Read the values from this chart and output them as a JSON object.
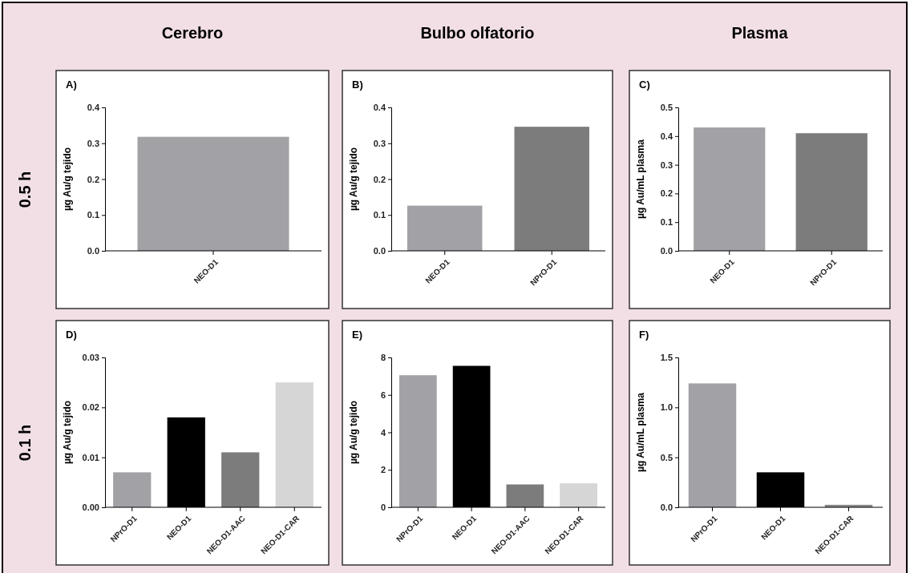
{
  "chart_data": [
    {
      "type": "bar",
      "title": "A)",
      "subtitle": "Cerebro",
      "annotations": [
        "0.5 h"
      ],
      "ylabel": "µg Au/g tejido",
      "categories": [
        "NEO-D1"
      ],
      "values": [
        0.318
      ],
      "colors": [
        "#a2a2a6"
      ],
      "ylim": [
        0,
        0.4
      ],
      "yticks": [
        {
          "value": 0,
          "label": "0.0"
        },
        {
          "value": 0.1,
          "label": "0.1"
        },
        {
          "value": 0.2,
          "label": "0.2"
        },
        {
          "value": 0.3,
          "label": "0.3"
        },
        {
          "value": 0.4,
          "label": "0.4"
        }
      ]
    },
    {
      "type": "bar",
      "title": "B)",
      "subtitle": "Bulbo olfatorio",
      "ylabel": "µg Au/g tejido",
      "categories": [
        "NEO-D1",
        "NPrO-D1"
      ],
      "values": [
        0.126,
        0.346
      ],
      "colors": [
        "#a2a2a6",
        "#7c7c7c"
      ],
      "ylim": [
        0,
        0.4
      ],
      "yticks": [
        {
          "value": 0,
          "label": "0.0"
        },
        {
          "value": 0.1,
          "label": "0.1"
        },
        {
          "value": 0.2,
          "label": "0.2"
        },
        {
          "value": 0.3,
          "label": "0.3"
        },
        {
          "value": 0.4,
          "label": "0.4"
        }
      ]
    },
    {
      "type": "bar",
      "title": "C)",
      "subtitle": "Plasma",
      "ylabel": "µg Au/mL plasma",
      "categories": [
        "NEO-D1",
        "NPrO-D1"
      ],
      "values": [
        0.43,
        0.41
      ],
      "colors": [
        "#a2a2a6",
        "#7c7c7c"
      ],
      "ylim": [
        0,
        0.5
      ],
      "yticks": [
        {
          "value": 0,
          "label": "0.0"
        },
        {
          "value": 0.1,
          "label": "0.1"
        },
        {
          "value": 0.2,
          "label": "0.2"
        },
        {
          "value": 0.3,
          "label": "0.3"
        },
        {
          "value": 0.4,
          "label": "0.4"
        },
        {
          "value": 0.5,
          "label": "0.5"
        }
      ]
    },
    {
      "type": "bar",
      "title": "D)",
      "annotations": [
        "0.1 h"
      ],
      "ylabel": "µg Au/g tejido",
      "categories": [
        "NPrO-D1",
        "NEO-D1",
        "NEO-D1-AAC",
        "NEO-D1-CAR"
      ],
      "values": [
        0.007,
        0.018,
        0.011,
        0.025
      ],
      "colors": [
        "#a2a2a6",
        "#000000",
        "#7c7c7c",
        "#d6d6d6"
      ],
      "ylim": [
        0,
        0.03
      ],
      "yticks": [
        {
          "value": 0,
          "label": "0.00"
        },
        {
          "value": 0.01,
          "label": "0.01"
        },
        {
          "value": 0.02,
          "label": "0.02"
        },
        {
          "value": 0.03,
          "label": "0.03"
        }
      ]
    },
    {
      "type": "bar",
      "title": "E)",
      "ylabel": "µg Au/g tejido",
      "categories": [
        "NPrO-D1",
        "NEO-D1",
        "NEO-D1-AAC",
        "NEO-D1-CAR"
      ],
      "values": [
        7.05,
        7.55,
        1.22,
        1.28
      ],
      "colors": [
        "#a2a2a6",
        "#000000",
        "#7c7c7c",
        "#d6d6d6"
      ],
      "ylim": [
        0,
        8
      ],
      "yticks": [
        0,
        2,
        4,
        6,
        8
      ]
    },
    {
      "type": "bar",
      "title": "F)",
      "ylabel": "µg Au/mL plasma",
      "categories": [
        "NPrO-D1",
        "NEO-D1",
        "NEO-D1-CAR"
      ],
      "values": [
        1.24,
        0.35,
        0.025
      ],
      "colors": [
        "#a2a2a6",
        "#000000",
        "#8a8a8a"
      ],
      "ylim": [
        0,
        1.5
      ],
      "yticks": [
        {
          "value": 0,
          "label": "0.0"
        },
        {
          "value": 0.5,
          "label": "0.5"
        },
        {
          "value": 1,
          "label": "1.0"
        },
        {
          "value": 1.5,
          "label": "1.5"
        }
      ]
    }
  ]
}
